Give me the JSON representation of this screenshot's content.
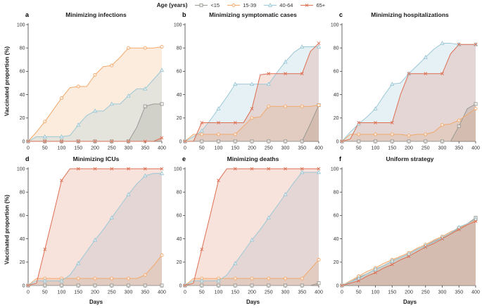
{
  "figure": {
    "legend": {
      "title": "Age (years)",
      "items": [
        {
          "label": "<15",
          "marker": "square",
          "color": "#9a9a94",
          "fill_opacity": 0.3
        },
        {
          "label": "15-39",
          "marker": "circle",
          "color": "#f2a96b",
          "fill_opacity": 0.22
        },
        {
          "label": "40-64",
          "marker": "triangle",
          "color": "#9cc8d6",
          "fill_opacity": 0.25
        },
        {
          "label": "65+",
          "marker": "x",
          "color": "#dd6e52",
          "fill_opacity": 0.2
        }
      ]
    },
    "ylabel": "Vaccinated proportion (%)",
    "xlabel": "Days"
  },
  "chart_data": [
    {
      "letter": "a",
      "title": "Minimizing infections",
      "type": "area",
      "x": [
        0,
        25,
        50,
        75,
        100,
        125,
        150,
        175,
        200,
        225,
        250,
        275,
        300,
        325,
        350,
        375,
        400
      ],
      "x_ticks": [
        0,
        50,
        100,
        150,
        200,
        250,
        300,
        350,
        400
      ],
      "y_ticks": [
        0,
        20,
        40,
        60,
        80,
        100
      ],
      "xlim": [
        0,
        400
      ],
      "ylim": [
        0,
        100
      ],
      "grid": false,
      "series": [
        {
          "name": "<15",
          "values": [
            0,
            0,
            0,
            0,
            0,
            0,
            0,
            0,
            0,
            0,
            0,
            0,
            0,
            12,
            30,
            32,
            32
          ]
        },
        {
          "name": "15-39",
          "values": [
            0,
            8,
            17,
            27,
            37,
            46,
            47,
            47,
            57,
            64,
            65,
            72,
            80,
            80,
            80,
            80,
            81
          ]
        },
        {
          "name": "40-64",
          "values": [
            0,
            4,
            4,
            4,
            4,
            5,
            14,
            22,
            26,
            26,
            32,
            32,
            39,
            45,
            45,
            53,
            61
          ]
        },
        {
          "name": "65+",
          "values": [
            0,
            0,
            0,
            0,
            0,
            0,
            0,
            0,
            0,
            0,
            0,
            0,
            0,
            0,
            0,
            0,
            3
          ]
        }
      ]
    },
    {
      "letter": "b",
      "title": "Minimizing symptomatic cases",
      "type": "area",
      "x": [
        0,
        25,
        50,
        75,
        100,
        125,
        150,
        175,
        200,
        225,
        250,
        275,
        300,
        325,
        350,
        375,
        400
      ],
      "x_ticks": [
        0,
        50,
        100,
        150,
        200,
        250,
        300,
        350,
        400
      ],
      "y_ticks": [
        0,
        20,
        40,
        60,
        80,
        100
      ],
      "xlim": [
        0,
        400
      ],
      "ylim": [
        0,
        100
      ],
      "grid": false,
      "series": [
        {
          "name": "<15",
          "values": [
            0,
            0,
            0,
            0,
            0,
            0,
            0,
            0,
            0,
            0,
            0,
            0,
            0,
            0,
            0,
            15,
            31
          ]
        },
        {
          "name": "15-39",
          "values": [
            0,
            6,
            6,
            6,
            6,
            6,
            6,
            13,
            20,
            21,
            30,
            30,
            30,
            30,
            30,
            30,
            31
          ]
        },
        {
          "name": "40-64",
          "values": [
            0,
            4,
            9,
            18,
            28,
            38,
            49,
            49,
            49,
            49,
            49,
            59,
            68,
            76,
            81,
            81,
            81
          ]
        },
        {
          "name": "65+",
          "values": [
            0,
            0,
            16,
            16,
            16,
            16,
            16,
            16,
            28,
            57,
            58,
            58,
            58,
            58,
            58,
            77,
            84
          ]
        }
      ]
    },
    {
      "letter": "c",
      "title": "Minimizing hospitalizations",
      "type": "area",
      "x": [
        0,
        25,
        50,
        75,
        100,
        125,
        150,
        175,
        200,
        225,
        250,
        275,
        300,
        325,
        350,
        375,
        400
      ],
      "x_ticks": [
        0,
        50,
        100,
        150,
        200,
        250,
        300,
        350,
        400
      ],
      "y_ticks": [
        0,
        20,
        40,
        60,
        80,
        100
      ],
      "xlim": [
        0,
        400
      ],
      "ylim": [
        0,
        100
      ],
      "grid": false,
      "series": [
        {
          "name": "<15",
          "values": [
            0,
            0,
            0,
            0,
            0,
            0,
            0,
            0,
            0,
            0,
            0,
            0,
            0,
            0,
            13,
            28,
            32
          ]
        },
        {
          "name": "15-39",
          "values": [
            0,
            6,
            6,
            6,
            6,
            6,
            6,
            6,
            5,
            6,
            6,
            8,
            14,
            15,
            18,
            23,
            28
          ]
        },
        {
          "name": "40-64",
          "values": [
            0,
            8,
            15,
            21,
            28,
            39,
            49,
            50,
            58,
            65,
            72,
            79,
            84,
            84,
            83,
            83,
            83
          ]
        },
        {
          "name": "65+",
          "values": [
            0,
            2,
            16,
            16,
            16,
            16,
            16,
            40,
            58,
            58,
            58,
            58,
            58,
            75,
            83,
            83,
            83
          ]
        }
      ]
    },
    {
      "letter": "d",
      "title": "Minimizing ICUs",
      "type": "area",
      "x": [
        0,
        25,
        50,
        75,
        100,
        125,
        150,
        175,
        200,
        225,
        250,
        275,
        300,
        325,
        350,
        375,
        400
      ],
      "x_ticks": [
        0,
        50,
        100,
        150,
        200,
        250,
        300,
        350,
        400
      ],
      "y_ticks": [
        0,
        20,
        40,
        60,
        80,
        100
      ],
      "xlim": [
        0,
        400
      ],
      "ylim": [
        0,
        100
      ],
      "grid": false,
      "series": [
        {
          "name": "<15",
          "values": [
            0,
            0,
            0,
            0,
            0,
            0,
            0,
            0,
            0,
            0,
            0,
            0,
            0,
            0,
            0,
            0,
            0
          ]
        },
        {
          "name": "15-39",
          "values": [
            0,
            6,
            6,
            6,
            6,
            6,
            6,
            6,
            6,
            6,
            6,
            6,
            6,
            6,
            9,
            17,
            26
          ]
        },
        {
          "name": "40-64",
          "values": [
            0,
            4,
            4,
            4,
            4,
            9,
            19,
            29,
            39,
            48,
            58,
            68,
            78,
            87,
            94,
            96,
            96
          ]
        },
        {
          "name": "65+",
          "values": [
            0,
            2,
            31,
            60,
            90,
            100,
            100,
            100,
            100,
            100,
            100,
            100,
            100,
            100,
            100,
            100,
            100
          ]
        }
      ]
    },
    {
      "letter": "e",
      "title": "Minimizing deaths",
      "type": "area",
      "x": [
        0,
        25,
        50,
        75,
        100,
        125,
        150,
        175,
        200,
        225,
        250,
        275,
        300,
        325,
        350,
        375,
        400
      ],
      "x_ticks": [
        0,
        50,
        100,
        150,
        200,
        250,
        300,
        350,
        400
      ],
      "y_ticks": [
        0,
        20,
        40,
        60,
        80,
        100
      ],
      "xlim": [
        0,
        400
      ],
      "ylim": [
        0,
        100
      ],
      "grid": false,
      "series": [
        {
          "name": "<15",
          "values": [
            0,
            0,
            0,
            0,
            0,
            0,
            0,
            0,
            0,
            0,
            0,
            0,
            0,
            0,
            0,
            0,
            2
          ]
        },
        {
          "name": "15-39",
          "values": [
            0,
            6,
            6,
            6,
            6,
            6,
            6,
            6,
            6,
            6,
            6,
            6,
            6,
            6,
            6,
            14,
            22
          ]
        },
        {
          "name": "40-64",
          "values": [
            0,
            4,
            4,
            4,
            4,
            9,
            19,
            29,
            39,
            48,
            58,
            68,
            78,
            88,
            97,
            97,
            97
          ]
        },
        {
          "name": "65+",
          "values": [
            0,
            2,
            31,
            60,
            90,
            100,
            100,
            100,
            100,
            100,
            100,
            100,
            100,
            100,
            100,
            100,
            100
          ]
        }
      ]
    },
    {
      "letter": "f",
      "title": "Uniform strategy",
      "type": "area",
      "x": [
        0,
        25,
        50,
        75,
        100,
        125,
        150,
        175,
        200,
        225,
        250,
        275,
        300,
        325,
        350,
        375,
        400
      ],
      "x_ticks": [
        0,
        50,
        100,
        150,
        200,
        250,
        300,
        350,
        400
      ],
      "y_ticks": [
        0,
        20,
        40,
        60,
        80,
        100
      ],
      "xlim": [
        0,
        400
      ],
      "ylim": [
        0,
        100
      ],
      "grid": false,
      "series": [
        {
          "name": "<15",
          "values": [
            0,
            3,
            7,
            10,
            14,
            17,
            21,
            24,
            27,
            31,
            34,
            38,
            41,
            45,
            49,
            53,
            58
          ]
        },
        {
          "name": "15-39",
          "values": [
            0,
            4,
            8,
            12,
            15,
            19,
            22,
            25,
            28,
            32,
            35,
            39,
            42,
            46,
            49,
            53,
            56
          ]
        },
        {
          "name": "40-64",
          "values": [
            0,
            3,
            6,
            10,
            14,
            17,
            21,
            24,
            27,
            31,
            34,
            37,
            41,
            45,
            50,
            53,
            57
          ]
        },
        {
          "name": "65+",
          "values": [
            0,
            2,
            4,
            8,
            11,
            15,
            18,
            22,
            25,
            29,
            33,
            36,
            40,
            44,
            48,
            52,
            55
          ]
        }
      ]
    }
  ]
}
